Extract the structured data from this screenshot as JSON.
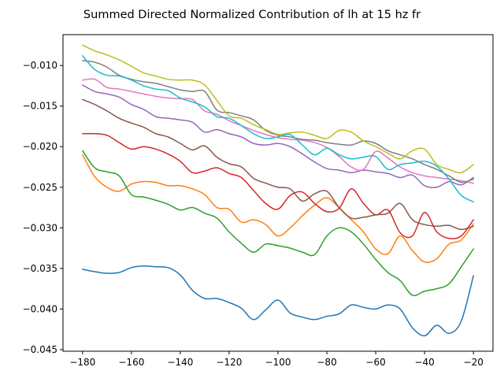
{
  "chart_data": {
    "type": "line",
    "title": "Summed Directed Normalized Contribution of lh at 15 hz fr",
    "xlabel": "",
    "ylabel": "",
    "xlim": [
      -188,
      -12
    ],
    "ylim": [
      -0.0452,
      -0.0062
    ],
    "xticks": [
      -180,
      -160,
      -140,
      -120,
      -100,
      -80,
      -60,
      -40,
      -20
    ],
    "xtick_labels": [
      "−180",
      "−160",
      "−140",
      "−120",
      "−100",
      "−80",
      "−60",
      "−40",
      "−20"
    ],
    "yticks": [
      -0.045,
      -0.04,
      -0.035,
      -0.03,
      -0.025,
      -0.02,
      -0.015,
      -0.01
    ],
    "ytick_labels": [
      "−0.045",
      "−0.040",
      "−0.035",
      "−0.030",
      "−0.025",
      "−0.020",
      "−0.015",
      "−0.010"
    ],
    "grid": false,
    "legend": "none",
    "x": [
      -180,
      -175,
      -170,
      -165,
      -160,
      -155,
      -150,
      -145,
      -140,
      -135,
      -130,
      -125,
      -120,
      -115,
      -110,
      -105,
      -100,
      -95,
      -90,
      -85,
      -80,
      -75,
      -70,
      -65,
      -60,
      -55,
      -50,
      -45,
      -40,
      -35,
      -30,
      -25,
      -20
    ],
    "series": [
      {
        "color": "#1f77b4",
        "values": [
          -0.0351,
          -0.0354,
          -0.0356,
          -0.0355,
          -0.0349,
          -0.0347,
          -0.0348,
          -0.0349,
          -0.0358,
          -0.0377,
          -0.0387,
          -0.0387,
          -0.0392,
          -0.0399,
          -0.0413,
          -0.0401,
          -0.0389,
          -0.0405,
          -0.041,
          -0.0413,
          -0.0409,
          -0.0406,
          -0.0395,
          -0.0398,
          -0.04,
          -0.0395,
          -0.04,
          -0.0423,
          -0.0433,
          -0.042,
          -0.043,
          -0.0415,
          -0.0359
        ]
      },
      {
        "color": "#ff7f0e",
        "values": [
          -0.021,
          -0.0237,
          -0.025,
          -0.0255,
          -0.0246,
          -0.0243,
          -0.0244,
          -0.0248,
          -0.0248,
          -0.0252,
          -0.0259,
          -0.0275,
          -0.0277,
          -0.0293,
          -0.029,
          -0.0296,
          -0.031,
          -0.03,
          -0.0285,
          -0.0272,
          -0.0263,
          -0.0275,
          -0.029,
          -0.0305,
          -0.0326,
          -0.0332,
          -0.031,
          -0.0328,
          -0.0342,
          -0.0338,
          -0.032,
          -0.0315,
          -0.0295
        ]
      },
      {
        "color": "#2ca02c",
        "values": [
          -0.0205,
          -0.0226,
          -0.0231,
          -0.0236,
          -0.0259,
          -0.0262,
          -0.0266,
          -0.0271,
          -0.0278,
          -0.0275,
          -0.0282,
          -0.0288,
          -0.0305,
          -0.0319,
          -0.033,
          -0.032,
          -0.0322,
          -0.0325,
          -0.033,
          -0.0333,
          -0.031,
          -0.03,
          -0.0305,
          -0.032,
          -0.0339,
          -0.0355,
          -0.0365,
          -0.0383,
          -0.0378,
          -0.0375,
          -0.0369,
          -0.0348,
          -0.0326
        ]
      },
      {
        "color": "#d62728",
        "values": [
          -0.0184,
          -0.0184,
          -0.0186,
          -0.0195,
          -0.0203,
          -0.02,
          -0.0203,
          -0.0209,
          -0.0218,
          -0.0232,
          -0.023,
          -0.0226,
          -0.0233,
          -0.0238,
          -0.0254,
          -0.027,
          -0.0277,
          -0.026,
          -0.0256,
          -0.027,
          -0.028,
          -0.0276,
          -0.0252,
          -0.027,
          -0.0284,
          -0.0278,
          -0.0306,
          -0.031,
          -0.0281,
          -0.0305,
          -0.0313,
          -0.031,
          -0.029
        ]
      },
      {
        "color": "#9467bd",
        "values": [
          -0.0124,
          -0.0132,
          -0.0135,
          -0.0139,
          -0.0148,
          -0.0154,
          -0.0163,
          -0.0165,
          -0.0167,
          -0.017,
          -0.0182,
          -0.0179,
          -0.0184,
          -0.0188,
          -0.0196,
          -0.0198,
          -0.0196,
          -0.02,
          -0.0209,
          -0.0219,
          -0.0227,
          -0.0229,
          -0.0232,
          -0.0229,
          -0.0231,
          -0.0233,
          -0.0238,
          -0.0235,
          -0.0248,
          -0.025,
          -0.0243,
          -0.0247,
          -0.0238
        ]
      },
      {
        "color": "#8c564b",
        "values": [
          -0.0142,
          -0.0148,
          -0.0156,
          -0.0165,
          -0.0171,
          -0.0176,
          -0.0184,
          -0.0188,
          -0.0196,
          -0.0204,
          -0.0199,
          -0.0213,
          -0.0221,
          -0.0225,
          -0.0239,
          -0.0245,
          -0.025,
          -0.0252,
          -0.0267,
          -0.0258,
          -0.0255,
          -0.0275,
          -0.0288,
          -0.0287,
          -0.0284,
          -0.0282,
          -0.027,
          -0.029,
          -0.0296,
          -0.0298,
          -0.0297,
          -0.0302,
          -0.0298
        ]
      },
      {
        "color": "#e377c2",
        "values": [
          -0.0118,
          -0.0117,
          -0.0127,
          -0.0129,
          -0.0132,
          -0.0135,
          -0.0138,
          -0.014,
          -0.0141,
          -0.0142,
          -0.0156,
          -0.016,
          -0.0168,
          -0.0174,
          -0.018,
          -0.0185,
          -0.0189,
          -0.0191,
          -0.0192,
          -0.0195,
          -0.0201,
          -0.0212,
          -0.0225,
          -0.0228,
          -0.0206,
          -0.0214,
          -0.0225,
          -0.0232,
          -0.0236,
          -0.0238,
          -0.024,
          -0.0242,
          -0.0245
        ]
      },
      {
        "color": "#7f7f7f",
        "values": [
          -0.0094,
          -0.0096,
          -0.0102,
          -0.0112,
          -0.0117,
          -0.012,
          -0.0122,
          -0.0126,
          -0.013,
          -0.0132,
          -0.0132,
          -0.0155,
          -0.0158,
          -0.0162,
          -0.0167,
          -0.018,
          -0.0186,
          -0.0188,
          -0.0191,
          -0.0192,
          -0.0195,
          -0.0197,
          -0.0198,
          -0.0193,
          -0.0196,
          -0.0205,
          -0.021,
          -0.0215,
          -0.0222,
          -0.0228,
          -0.0236,
          -0.0244,
          -0.024
        ]
      },
      {
        "color": "#bcbd22",
        "values": [
          -0.0075,
          -0.0082,
          -0.0087,
          -0.0093,
          -0.0101,
          -0.0109,
          -0.0113,
          -0.0117,
          -0.0118,
          -0.0118,
          -0.0124,
          -0.0143,
          -0.0162,
          -0.0165,
          -0.0173,
          -0.0179,
          -0.0185,
          -0.0183,
          -0.0182,
          -0.0186,
          -0.019,
          -0.018,
          -0.0182,
          -0.0193,
          -0.02,
          -0.0208,
          -0.0215,
          -0.0205,
          -0.0203,
          -0.0222,
          -0.0228,
          -0.0232,
          -0.0222
        ]
      },
      {
        "color": "#17becf",
        "values": [
          -0.0088,
          -0.0105,
          -0.0112,
          -0.0113,
          -0.0118,
          -0.0125,
          -0.0129,
          -0.0131,
          -0.014,
          -0.0145,
          -0.0151,
          -0.0163,
          -0.0165,
          -0.0174,
          -0.0184,
          -0.019,
          -0.0188,
          -0.0185,
          -0.0198,
          -0.021,
          -0.0202,
          -0.021,
          -0.0215,
          -0.0213,
          -0.0212,
          -0.0228,
          -0.0222,
          -0.022,
          -0.0218,
          -0.0224,
          -0.024,
          -0.026,
          -0.0268
        ]
      }
    ]
  }
}
